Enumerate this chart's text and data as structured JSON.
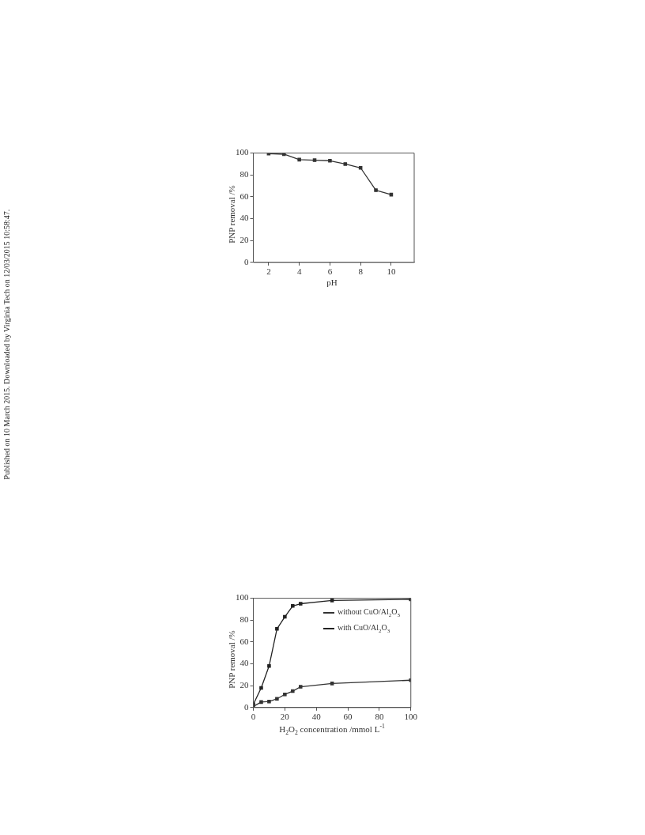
{
  "chart_data": [
    {
      "type": "line",
      "xlabel": "pH",
      "ylabel": "PNP removal /%",
      "x": [
        2,
        3,
        4,
        5,
        6,
        7,
        8,
        9,
        10
      ],
      "series": [
        {
          "color": "#333333",
          "values": [
            99.5,
            99,
            94,
            93.5,
            93,
            90,
            86.5,
            66,
            62
          ]
        }
      ],
      "xlim": [
        1,
        11.5
      ],
      "xticks": [
        2,
        4,
        6,
        8,
        10
      ],
      "ylim": [
        0,
        100
      ],
      "yticks": [
        0,
        20,
        40,
        60,
        80,
        100
      ],
      "grid": false,
      "legend": false,
      "marker": "square",
      "line_style": "solid",
      "annotations": [
        "Published on 10 March 2015. Downloaded by Virginia Tech on 12/03/2015 10:58:47."
      ]
    },
    {
      "type": "line",
      "xlabel": "H$_{2}$O$_{2}$ concentration /mmol L$^{-1}$",
      "ylabel": "PNP removal /%",
      "x": [
        0,
        5,
        10,
        15,
        20,
        25,
        30,
        50,
        100
      ],
      "series": [
        {
          "name": "without CuO/Al$_{2}$O$_{3}$",
          "color": "#333333",
          "values": [
            1,
            5,
            5.5,
            8,
            12,
            15,
            19,
            22,
            25
          ]
        },
        {
          "name": "with CuO/Al$_{2}$O$_{3}$",
          "color": "#222222",
          "values": [
            3,
            18,
            38,
            72,
            83,
            93,
            95,
            98,
            99
          ]
        }
      ],
      "xlim": [
        0,
        100
      ],
      "xticks": [
        0,
        20,
        40,
        60,
        80,
        100
      ],
      "ylim": [
        0,
        100
      ],
      "yticks": [
        0,
        20,
        40,
        60,
        80,
        100
      ],
      "grid": false,
      "legend": "top right",
      "marker": "square",
      "line_style": "solid"
    }
  ]
}
